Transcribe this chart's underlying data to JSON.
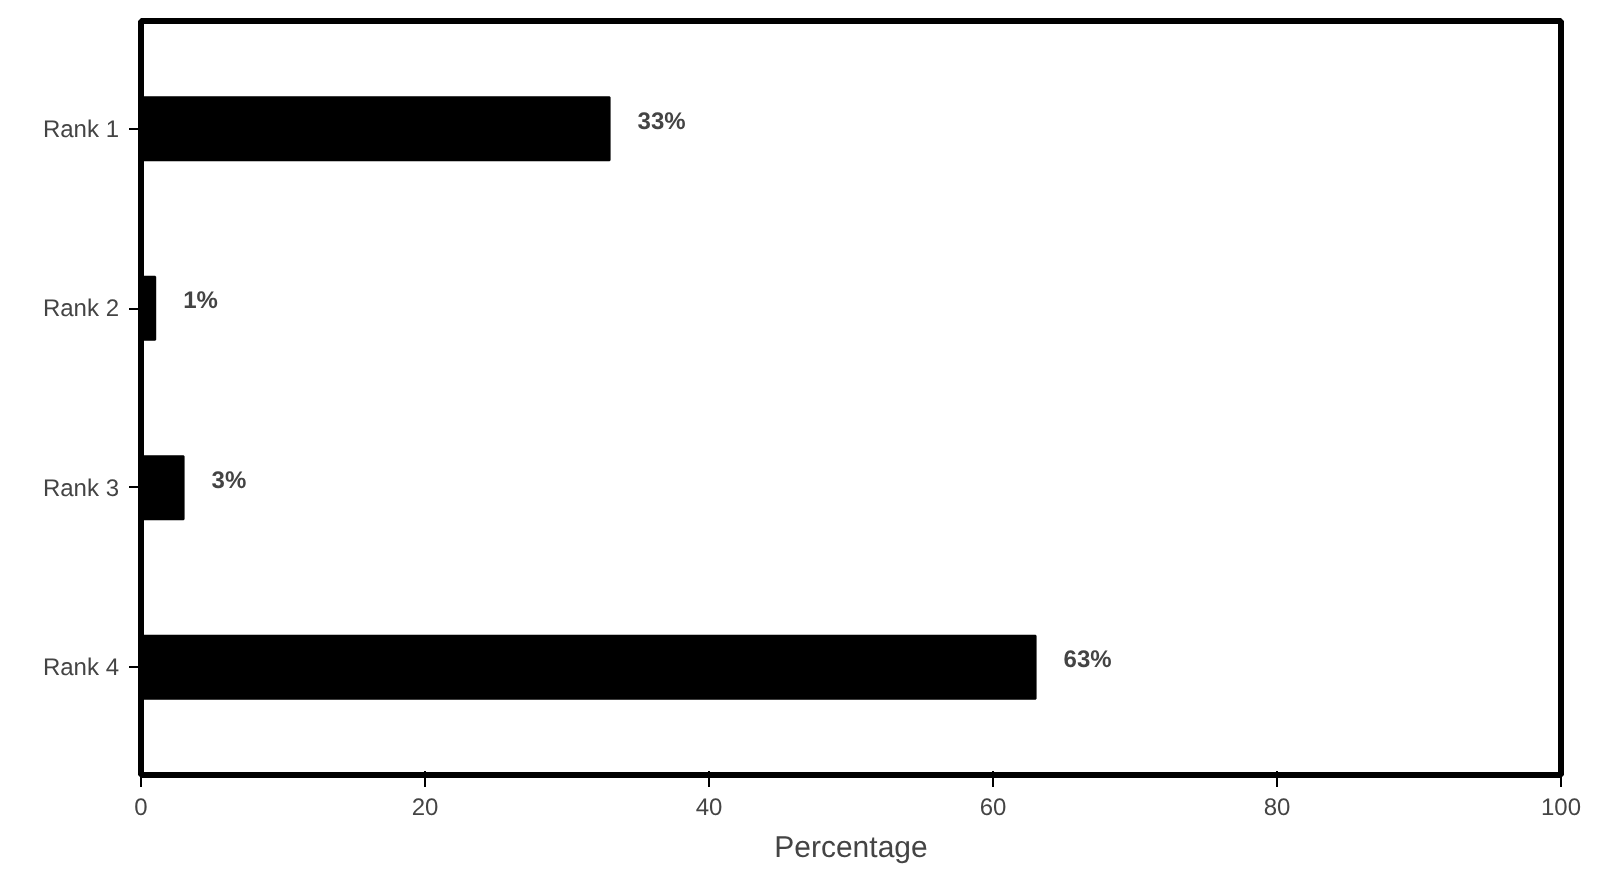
{
  "chart_data": {
    "type": "bar",
    "orientation": "horizontal",
    "categories": [
      "Rank 1",
      "Rank 2",
      "Rank 3",
      "Rank 4"
    ],
    "values": [
      33,
      1,
      3,
      63
    ],
    "value_labels": [
      "33%",
      "1%",
      "3%",
      "63%"
    ],
    "color": "#000000",
    "xlabel": "Percentage",
    "xlim": [
      0,
      100
    ],
    "xticks": [
      0,
      20,
      40,
      60,
      80,
      100
    ],
    "grid": false
  }
}
